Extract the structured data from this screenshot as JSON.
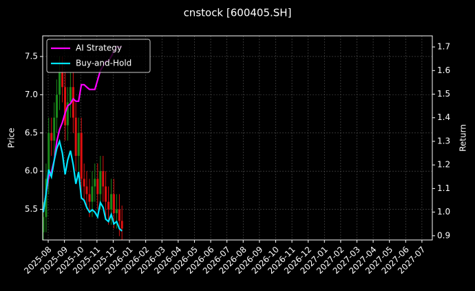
{
  "chart_data": {
    "type": "candlestick",
    "title": "cnstock [600405.SH]",
    "ylabel": "Price",
    "y2label": "Return",
    "x": [
      -0.3,
      -0.13,
      0.03,
      0.2,
      0.37,
      0.53,
      0.7,
      0.87,
      1.04,
      1.2,
      1.37,
      1.54,
      1.7,
      1.87,
      2.04,
      2.21,
      2.37,
      2.54,
      2.71,
      2.87,
      3.04,
      3.21,
      3.38,
      3.54,
      3.71,
      3.88,
      4.04,
      4.21,
      4.38,
      4.54
    ],
    "open": [
      5.2,
      5.4,
      5.9,
      6.5,
      6.4,
      6.7,
      7.0,
      7.3,
      7.1,
      6.6,
      6.9,
      7.1,
      6.7,
      6.2,
      6.5,
      5.9,
      5.8,
      5.7,
      5.6,
      5.8,
      5.9,
      5.7,
      6.0,
      5.8,
      5.6,
      5.5,
      5.7,
      5.45,
      5.5,
      5.35
    ],
    "high": [
      5.6,
      6.1,
      6.7,
      6.7,
      6.9,
      7.2,
      7.5,
      7.5,
      7.3,
      7.1,
      7.3,
      7.3,
      6.9,
      6.7,
      6.7,
      6.1,
      6.0,
      5.9,
      6.0,
      6.1,
      6.1,
      6.2,
      6.2,
      6.0,
      5.8,
      5.9,
      5.9,
      5.7,
      5.7,
      5.55
    ],
    "low": [
      5.1,
      5.2,
      5.7,
      6.2,
      6.2,
      6.5,
      6.8,
      6.9,
      6.4,
      6.4,
      6.7,
      6.5,
      6.0,
      6.0,
      5.7,
      5.6,
      5.5,
      5.4,
      5.4,
      5.6,
      5.5,
      5.5,
      5.6,
      5.4,
      5.3,
      5.3,
      5.25,
      5.25,
      5.15,
      5.1
    ],
    "close": [
      5.4,
      5.9,
      6.5,
      6.4,
      6.7,
      7.0,
      7.3,
      7.1,
      6.6,
      6.9,
      7.1,
      6.7,
      6.2,
      6.5,
      5.9,
      5.8,
      5.7,
      5.6,
      5.8,
      5.9,
      5.7,
      6.0,
      5.8,
      5.6,
      5.5,
      5.7,
      5.45,
      5.5,
      5.35,
      5.25
    ],
    "up_color": "#1a8a1a",
    "down_color": "#e01010",
    "series": [
      {
        "name": "AI Strategy",
        "color": "#ff00ff",
        "axis": "y2",
        "values": [
          1.0,
          1.08,
          1.15,
          1.17,
          1.22,
          1.3,
          1.35,
          1.38,
          1.42,
          1.45,
          1.46,
          1.48,
          1.47,
          1.47,
          1.54,
          1.54,
          1.53,
          1.52,
          1.52,
          1.52,
          1.56,
          1.6,
          1.62,
          1.64,
          1.64,
          1.66,
          1.68,
          1.7,
          1.7,
          1.7
        ]
      },
      {
        "name": "Buy-and-Hold",
        "color": "#00e5ff",
        "axis": "y2",
        "values": [
          1.0,
          1.08,
          1.18,
          1.15,
          1.22,
          1.27,
          1.3,
          1.25,
          1.16,
          1.22,
          1.26,
          1.2,
          1.12,
          1.17,
          1.06,
          1.05,
          1.02,
          1.0,
          1.01,
          1.0,
          0.98,
          1.04,
          1.02,
          0.97,
          0.96,
          0.99,
          0.95,
          0.96,
          0.93,
          0.92
        ]
      }
    ],
    "xlim": [
      -0.34,
      23.64
    ],
    "xticks": [
      {
        "value": 0,
        "label": "2025-08"
      },
      {
        "value": 1,
        "label": "2025-09"
      },
      {
        "value": 2,
        "label": "2025-10"
      },
      {
        "value": 3,
        "label": "2025-11"
      },
      {
        "value": 4,
        "label": "2025-12"
      },
      {
        "value": 5,
        "label": "2026-01"
      },
      {
        "value": 6,
        "label": "2026-02"
      },
      {
        "value": 7,
        "label": "2026-03"
      },
      {
        "value": 8,
        "label": "2026-04"
      },
      {
        "value": 9,
        "label": "2026-05"
      },
      {
        "value": 10,
        "label": "2026-06"
      },
      {
        "value": 11,
        "label": "2026-07"
      },
      {
        "value": 12,
        "label": "2026-08"
      },
      {
        "value": 13,
        "label": "2026-09"
      },
      {
        "value": 14,
        "label": "2026-10"
      },
      {
        "value": 15,
        "label": "2026-11"
      },
      {
        "value": 16,
        "label": "2026-12"
      },
      {
        "value": 17,
        "label": "2027-01"
      },
      {
        "value": 18,
        "label": "2027-02"
      },
      {
        "value": 19,
        "label": "2027-03"
      },
      {
        "value": 20,
        "label": "2027-04"
      },
      {
        "value": 21,
        "label": "2027-05"
      },
      {
        "value": 22,
        "label": "2027-06"
      },
      {
        "value": 23,
        "label": "2027-07"
      }
    ],
    "ylim": [
      5.1,
      7.77
    ],
    "yticks": [
      5.5,
      {
        "value": 6,
        "label": "6.0"
      },
      6.5,
      {
        "value": 7,
        "label": "7.0"
      },
      7.5
    ],
    "y2lim": [
      0.882,
      1.747
    ],
    "y2ticks": [
      0.9,
      {
        "value": 1,
        "label": "1.0"
      },
      1.1,
      1.2,
      1.3,
      1.4,
      1.5,
      1.6,
      1.7
    ],
    "grid": true,
    "legend": "upper left"
  }
}
